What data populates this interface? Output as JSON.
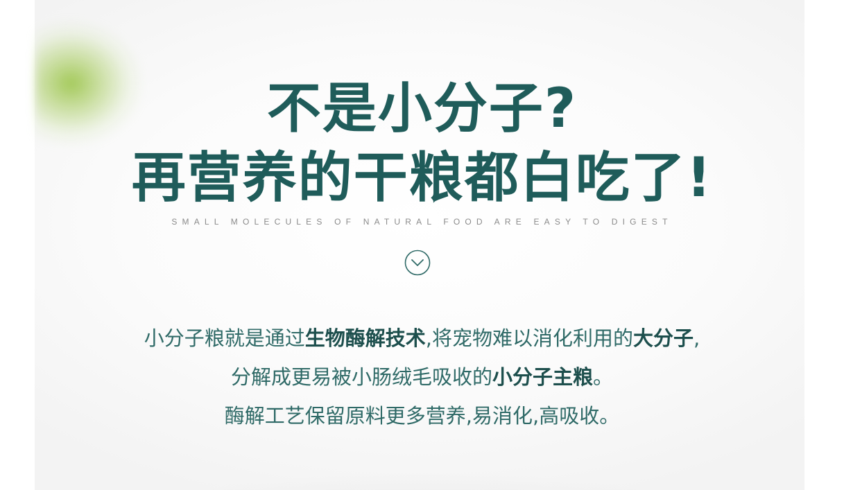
{
  "headline": {
    "line1": "不是小分子?",
    "line2": "再营养的干粮都白吃了!"
  },
  "subtitle": "SMALL MOLECULES OF NATURAL FOOD ARE EASY TO DIGEST",
  "icon": "chevron-down-circle-icon",
  "colors": {
    "heading": "#1f5c5a",
    "body": "#2f6a67",
    "emphasis": "#1d4f4d",
    "leaf_green": "#9ac448"
  },
  "body": {
    "line1": {
      "a": "小分子粮就是通过",
      "b": "生物酶解技术",
      "c": ",将宠物难以消化利用的",
      "d": "大分子",
      "e": ","
    },
    "line2": {
      "a": "分解成更易被小肠绒毛吸收的",
      "b": "小分子主粮",
      "c": "。"
    },
    "line3": "酶解工艺保留原料更多营养,易消化,高吸收。"
  }
}
